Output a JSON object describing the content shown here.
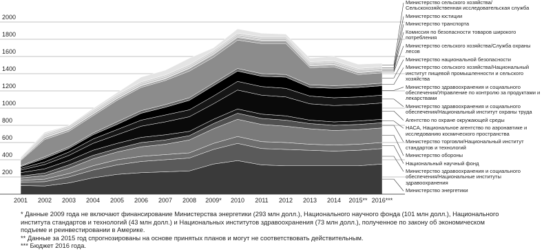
{
  "chart_data": {
    "type": "stacked-area",
    "categories": [
      "2001",
      "2002",
      "2003",
      "2004",
      "2005",
      "2006",
      "2007",
      "2008",
      "2009*",
      "2010",
      "2011",
      "2012",
      "2013",
      "2014",
      "2015**",
      "2016***"
    ],
    "ylim": [
      0,
      2200
    ],
    "yticks": [
      200,
      400,
      600,
      800,
      1000,
      1200,
      1400,
      1600,
      1800,
      2000
    ],
    "grid": true,
    "series": [
      {
        "name": "Министерство энергетики",
        "color": "#3a3a3a",
        "values": [
          100,
          95,
          130,
          190,
          230,
          250,
          260,
          270,
          350,
          390,
          340,
          330,
          330,
          330,
          330,
          350
        ]
      },
      {
        "name": "Министерство здравоохранения и социального обеспечения/Национальные институты здравоохранения",
        "color": "#5a5a5a",
        "values": [
          40,
          50,
          70,
          90,
          110,
          130,
          140,
          150,
          170,
          200,
          190,
          190,
          180,
          170,
          180,
          180
        ]
      },
      {
        "name": "Национальный научный фонд",
        "color": "#6e6e6e",
        "values": [
          20,
          30,
          40,
          50,
          60,
          60,
          60,
          60,
          70,
          80,
          80,
          80,
          70,
          70,
          70,
          70
        ]
      },
      {
        "name": "Министерство обороны",
        "color": "#7a7a7a",
        "values": [
          30,
          40,
          60,
          80,
          90,
          110,
          120,
          150,
          170,
          200,
          200,
          190,
          180,
          170,
          170,
          170
        ]
      },
      {
        "name": "Министерство торговли/Национальный институт стандартов и технологий",
        "color": "#505050",
        "values": [
          20,
          30,
          40,
          40,
          40,
          50,
          50,
          50,
          60,
          70,
          70,
          70,
          60,
          60,
          60,
          60
        ]
      },
      {
        "name": "НАСА, Национальное агентство по аэронавтике и исследованию космического пространства",
        "color": "#1a1a1a",
        "values": [
          40,
          50,
          50,
          60,
          60,
          60,
          60,
          50,
          50,
          50,
          50,
          50,
          40,
          40,
          40,
          40
        ]
      },
      {
        "name": "Агентство по охране окружающей среды",
        "color": "#0a0a0a",
        "values": [
          30,
          50,
          60,
          80,
          100,
          130,
          150,
          170,
          180,
          220,
          220,
          220,
          190,
          190,
          190,
          190
        ]
      },
      {
        "name": "Министерство здравоохранения и социального обеспечения/Национальный институт охраны труда",
        "color": "#151515",
        "values": [
          20,
          30,
          40,
          50,
          60,
          70,
          80,
          80,
          90,
          100,
          100,
          100,
          90,
          90,
          90,
          90
        ]
      },
      {
        "name": "Министерство здравоохранения и социального обеспечения/Управление по контролю за продуктами и лекарствами",
        "color": "#000000",
        "values": [
          20,
          40,
          40,
          50,
          60,
          80,
          90,
          110,
          120,
          120,
          120,
          130,
          100,
          110,
          110,
          110
        ]
      },
      {
        "name": "Министерство сельского хозяйства/Национальный институт пищевой промышленности и сельского хозяйства",
        "color": "#666666",
        "values": [
          10,
          20,
          20,
          20,
          30,
          30,
          30,
          30,
          30,
          30,
          30,
          30,
          30,
          30,
          30,
          30
        ]
      },
      {
        "name": "Министерство национальной безопасности",
        "color": "#8c8c8c",
        "values": [
          60,
          200,
          180,
          200,
          250,
          270,
          280,
          310,
          300,
          330,
          350,
          360,
          200,
          220,
          120,
          120
        ]
      },
      {
        "name": "Министерство сельского хозяйства/Служба охраны лесов",
        "color": "#a0a0a0",
        "values": [
          10,
          20,
          20,
          20,
          20,
          20,
          20,
          30,
          30,
          30,
          30,
          30,
          20,
          20,
          20,
          20
        ]
      },
      {
        "name": "Комиссия по безопасности товаров широкого потребления",
        "color": "#b4b4b4",
        "values": [
          5,
          5,
          5,
          5,
          5,
          5,
          5,
          5,
          10,
          10,
          10,
          10,
          10,
          10,
          10,
          10
        ]
      },
      {
        "name": "Министерство транспорта",
        "color": "#c4c4c4",
        "values": [
          10,
          20,
          20,
          20,
          20,
          20,
          20,
          20,
          20,
          20,
          20,
          20,
          20,
          20,
          20,
          20
        ]
      },
      {
        "name": "Министерство юстиции",
        "color": "#d2d2d2",
        "values": [
          10,
          20,
          20,
          20,
          20,
          20,
          20,
          20,
          20,
          20,
          20,
          20,
          20,
          20,
          20,
          20
        ]
      },
      {
        "name": "Министерство сельского хозяйства/Сельскохозяйственная исследовательская служба",
        "color": "#e4e4e4",
        "values": [
          5,
          20,
          5,
          20,
          25,
          55,
          55,
          75,
          30,
          50,
          40,
          30,
          40,
          50,
          50,
          40
        ]
      }
    ],
    "notes": [
      "* Данные 2009 года не включают финансирование Министерства энергетики (293 млн долл.), Национального научного фонда (101 млн долл.), Национального института стандартов и технологий (43 млн долл.) и Национальных институтов здравоохранения (73 млн долл.), полученное по закону об экономическом подъеме и реинвестировании в Америке.",
      "** Данные за 2015 год спрогнозированы на основе принятых планов и могут не соответствовать действительным.",
      "*** Бюджет 2016 года."
    ]
  }
}
